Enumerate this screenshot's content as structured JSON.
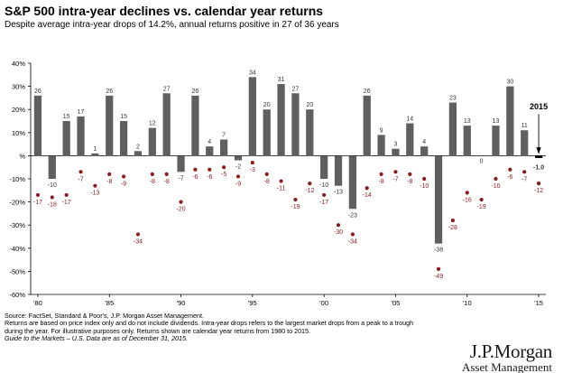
{
  "chart_data": {
    "type": "bar",
    "title": "S&P 500 intra-year declines vs. calendar year returns",
    "subtitle": "Despite average intra-year drops of 14.2%, annual returns positive in 27 of 36 years",
    "ylim": [
      -60,
      40
    ],
    "yticks": [
      "40%",
      "30%",
      "20%",
      "10%",
      "%",
      "-10%",
      "-20%",
      "-30%",
      "-40%",
      "-50%",
      "-60%"
    ],
    "xtick_labels": [
      {
        "year": 1980,
        "label": "'80"
      },
      {
        "year": 1985,
        "label": "'85"
      },
      {
        "year": 1990,
        "label": "'90"
      },
      {
        "year": 1995,
        "label": "'95"
      },
      {
        "year": 2000,
        "label": "'00"
      },
      {
        "year": 2005,
        "label": "'05"
      },
      {
        "year": 2010,
        "label": "'10"
      },
      {
        "year": 2015,
        "label": "'15"
      }
    ],
    "years": [
      1980,
      1981,
      1982,
      1983,
      1984,
      1985,
      1986,
      1987,
      1988,
      1989,
      1990,
      1991,
      1992,
      1993,
      1994,
      1995,
      1996,
      1997,
      1998,
      1999,
      2000,
      2001,
      2002,
      2003,
      2004,
      2005,
      2006,
      2007,
      2008,
      2009,
      2010,
      2011,
      2012,
      2013,
      2014,
      2015
    ],
    "annual_returns": [
      26,
      -10,
      15,
      17,
      1,
      26,
      15,
      2,
      12,
      27,
      -7,
      26,
      4,
      7,
      -2,
      34,
      20,
      31,
      27,
      20,
      -10,
      -13,
      -23,
      26,
      9,
      3,
      14,
      4,
      -38,
      23,
      13,
      0,
      13,
      30,
      11,
      -1
    ],
    "intra_year_declines": [
      -17,
      -18,
      -17,
      -7,
      -13,
      -8,
      -9,
      -34,
      -8,
      -8,
      -20,
      -6,
      -6,
      -5,
      -9,
      -3,
      -8,
      -11,
      -19,
      -12,
      -17,
      -30,
      -34,
      -14,
      -8,
      -7,
      -8,
      -10,
      -49,
      -28,
      -16,
      -19,
      -10,
      -6,
      -7,
      -12
    ],
    "grid": false,
    "colors": {
      "bars": "#5f5f5f",
      "declines": "#8b1a1a",
      "axis": "#000000"
    },
    "annotation": {
      "year_label": "2015",
      "value_label": "-1.0"
    }
  },
  "footer": {
    "line1": "Source: FactSet, Standard & Poor's, J.P. Morgan Asset Management.",
    "line2": "Returns are based on price index only and do not include dividends. Intra-year drops refers to the largest market drops from a peak to a trough",
    "line3": "during the year. For illustrative purposes only. Returns shown are calendar year returns from 1980 to 2015.",
    "line4": "Guide to the Markets – U.S. Data are as of December 31, 2015."
  },
  "logo": {
    "main": "J.P.Morgan",
    "sub": "Asset Management"
  }
}
